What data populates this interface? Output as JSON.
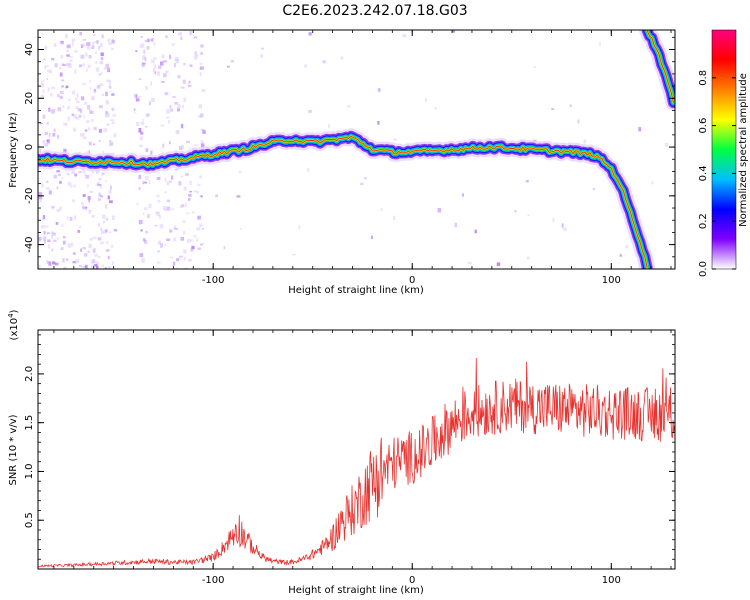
{
  "figure_title": "C2E6.2023.242.07.18.G03",
  "colors": {
    "line": "#e8322f",
    "axis": "#000000",
    "background": "#ffffff"
  },
  "chart_data": [
    {
      "type": "heatmap",
      "xlabel": "Height of straight line (km)",
      "ylabel": "Frequency (Hz)",
      "xlim": [
        -188,
        132
      ],
      "ylim": [
        -50,
        48
      ],
      "xticks": [
        -100,
        0,
        100
      ],
      "xtick_labels": [
        "-100",
        "0",
        "100"
      ],
      "yticks": [
        -40,
        -20,
        0,
        20,
        40
      ],
      "ytick_labels": [
        "-40",
        "-20",
        "0",
        "20",
        "40"
      ],
      "ridge": {
        "x": [
          -188,
          -170,
          -150,
          -130,
          -115,
          -100,
          -85,
          -70,
          -60,
          -50,
          -40,
          -30,
          -20,
          -10,
          0,
          20,
          40,
          60,
          80,
          90,
          95,
          100,
          105,
          110,
          115,
          118
        ],
        "y": [
          -5,
          -6,
          -6,
          -7,
          -5,
          -3,
          -1,
          2,
          3,
          2,
          3,
          4,
          -1,
          -2,
          -2,
          -1,
          0,
          -1,
          -2,
          -3,
          -5,
          -9,
          -16,
          -28,
          -40,
          -49
        ]
      },
      "ridge2": {
        "x": [
          118,
          123,
          128,
          132
        ],
        "y": [
          48,
          40,
          28,
          16
        ]
      },
      "colorbar": {
        "label": "Normalized spectral amplitude",
        "range": [
          0,
          1
        ],
        "ticks": [
          0.0,
          0.2,
          0.4,
          0.6,
          0.8
        ],
        "tick_labels": [
          "0.0",
          "0.2",
          "0.4",
          "0.6",
          "0.8"
        ],
        "colors": [
          "#ffffff",
          "#8000ff",
          "#0000ff",
          "#00c0ff",
          "#00ff40",
          "#ffff00",
          "#ff8000",
          "#ff0000",
          "#ff0080"
        ]
      }
    },
    {
      "type": "line",
      "xlabel": "Height of straight line (km)",
      "ylabel": "SNR (10 * v/v)",
      "multiplier": "(x10",
      "multiplier_exp": "4",
      "multiplier_close": ")",
      "xlim": [
        -188,
        132
      ],
      "ylim": [
        0.0,
        2.45
      ],
      "xticks": [
        -100,
        0,
        100
      ],
      "xtick_labels": [
        "-100",
        "0",
        "100"
      ],
      "yticks": [
        0.5,
        1.0,
        1.5,
        2.0
      ],
      "ytick_labels": [
        "0.5",
        "1.0",
        "1.5",
        "2.0"
      ],
      "series": [
        {
          "x": [
            -188,
            -170,
            -160,
            -150,
            -140,
            -130,
            -120,
            -110,
            -100,
            -95,
            -90,
            -88,
            -85,
            -80,
            -75,
            -70,
            -65,
            -60,
            -55,
            -50,
            -45,
            -40,
            -35,
            -30,
            -25,
            -20,
            -15,
            -10,
            -5,
            0,
            5,
            10,
            15,
            20,
            25,
            30,
            40,
            50,
            60,
            70,
            80,
            90,
            100,
            110,
            120,
            132
          ],
          "y": [
            0.03,
            0.04,
            0.05,
            0.06,
            0.07,
            0.08,
            0.07,
            0.07,
            0.12,
            0.22,
            0.35,
            0.45,
            0.35,
            0.22,
            0.12,
            0.08,
            0.07,
            0.07,
            0.1,
            0.15,
            0.22,
            0.32,
            0.5,
            0.6,
            0.75,
            0.9,
            1.0,
            1.08,
            1.12,
            1.15,
            1.2,
            1.28,
            1.4,
            1.48,
            1.55,
            1.6,
            1.65,
            1.68,
            1.66,
            1.65,
            1.63,
            1.62,
            1.6,
            1.6,
            1.58,
            1.57
          ]
        }
      ]
    }
  ]
}
